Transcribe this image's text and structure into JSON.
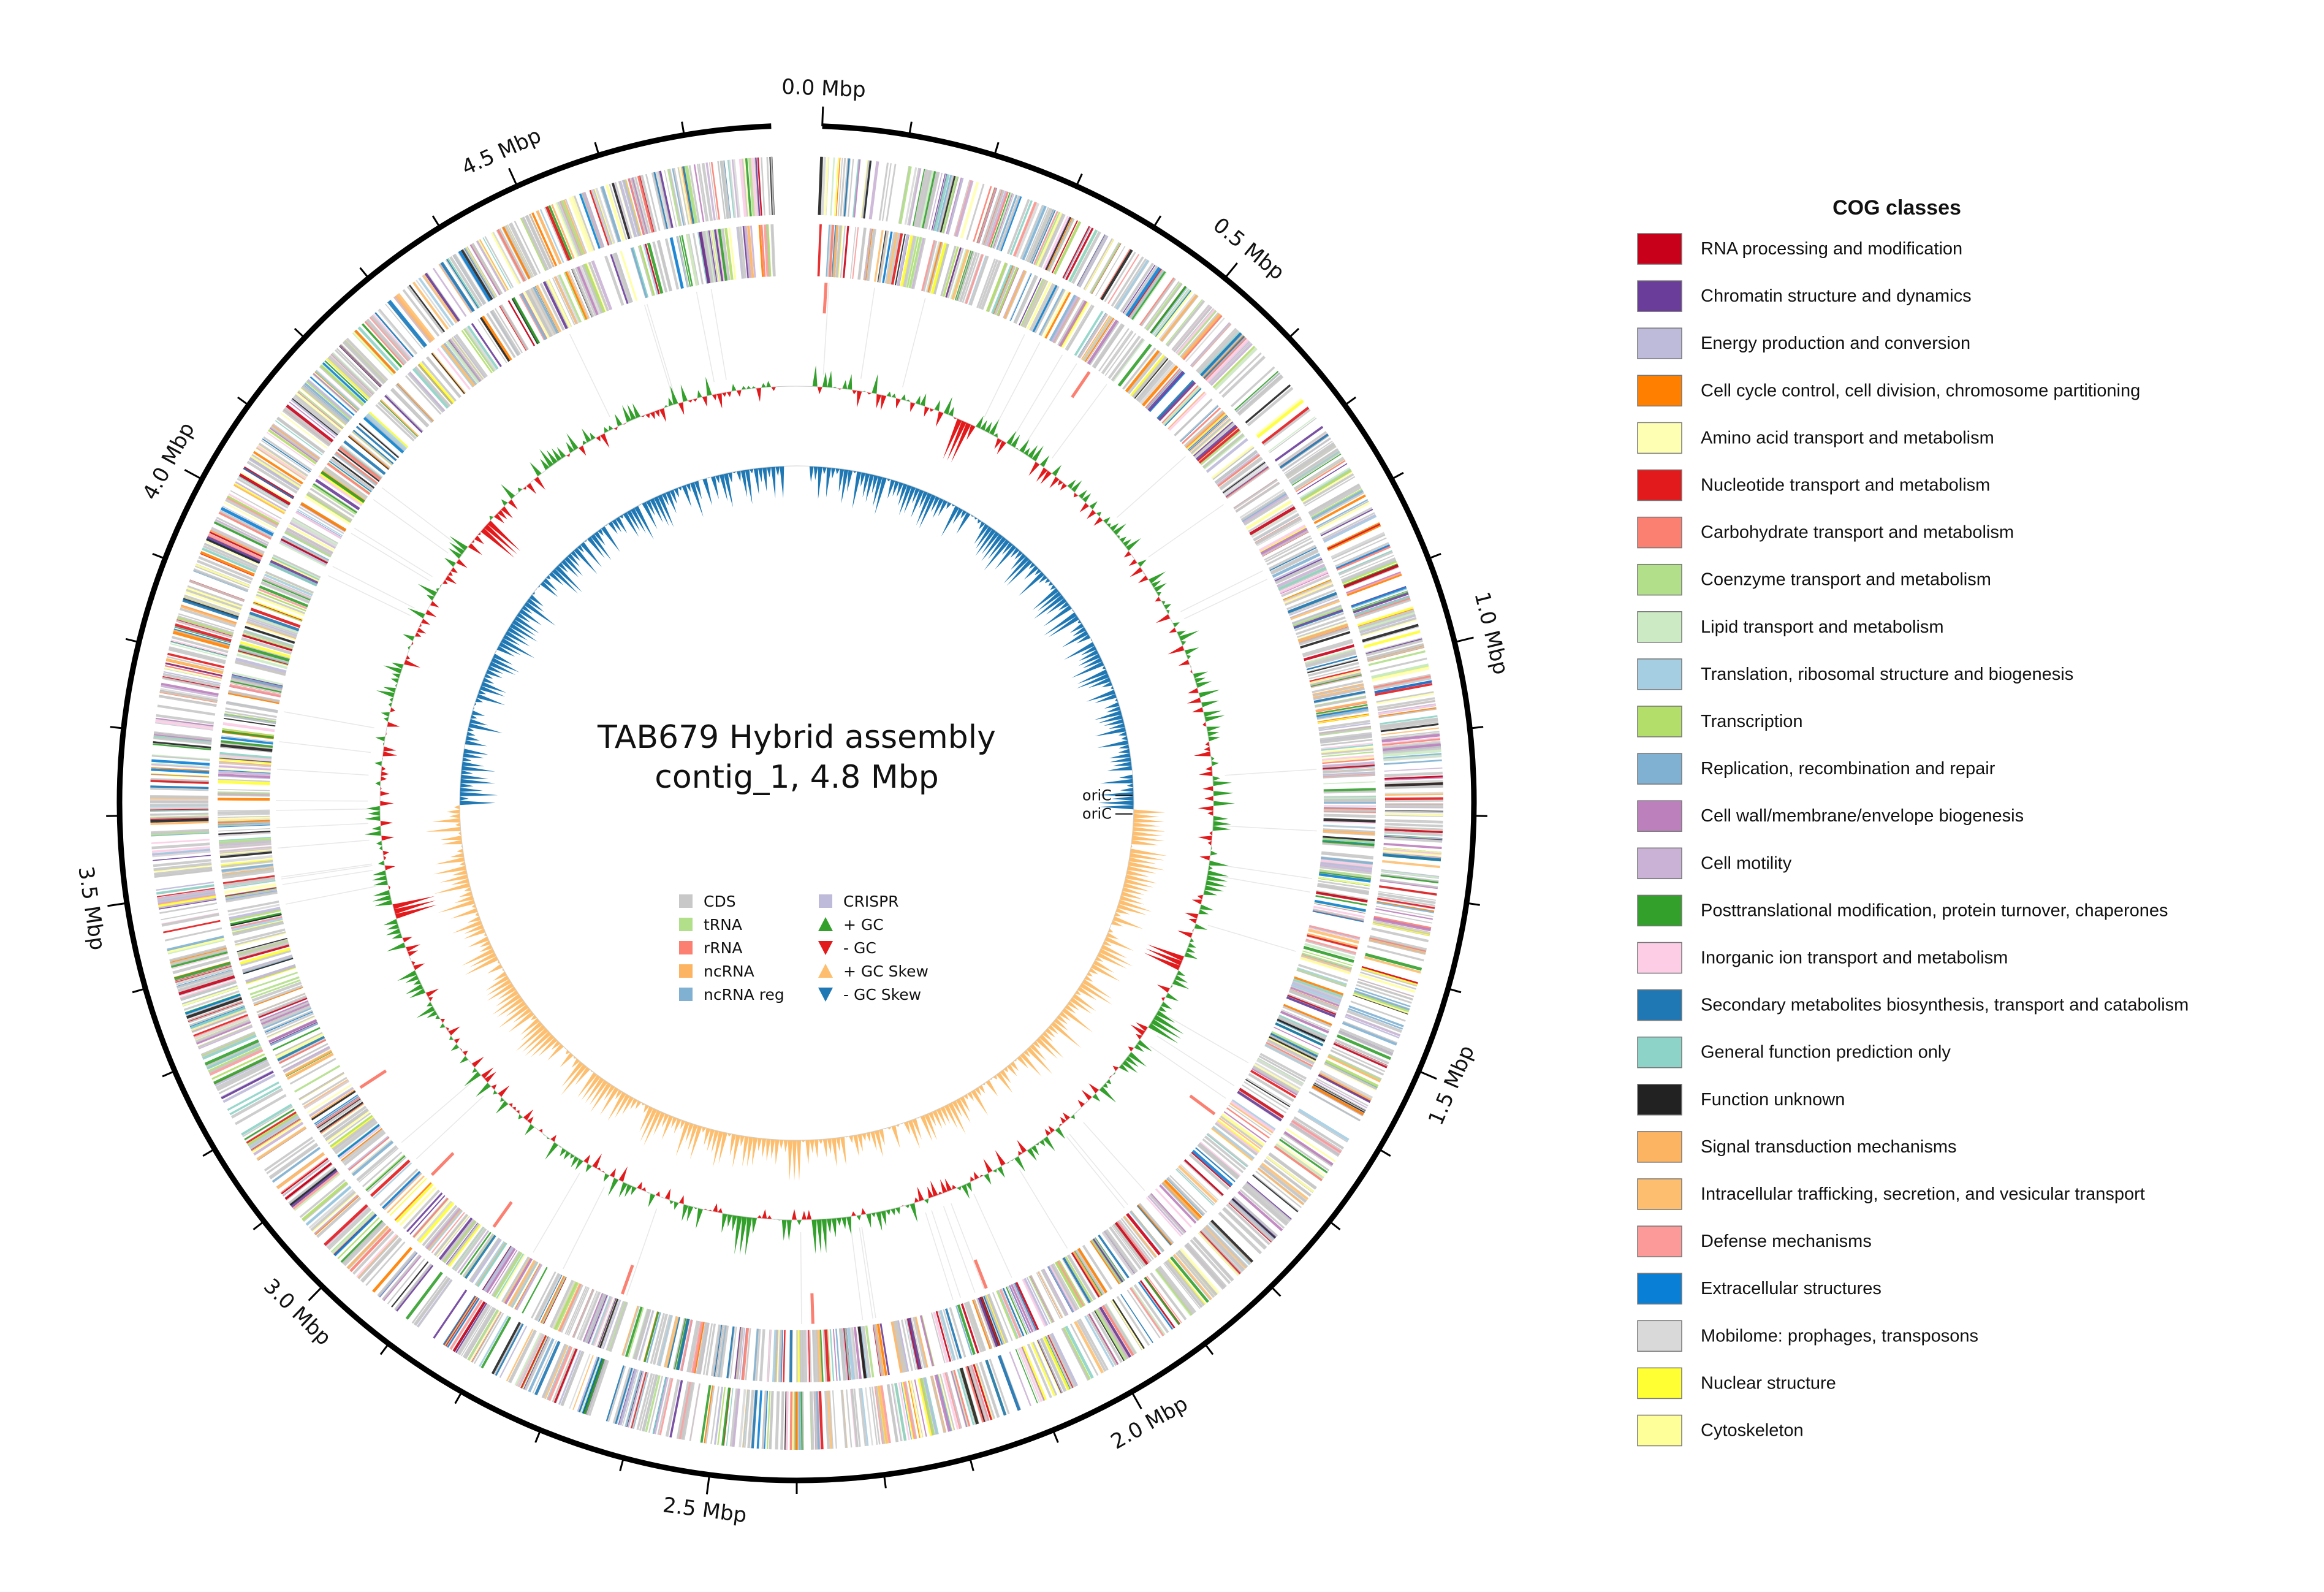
{
  "title_lines": [
    "TAB679 Hybrid assembly",
    "contig_1, 4.8 Mbp"
  ],
  "genome": {
    "length_mbp": 4.8
  },
  "ticks": {
    "labels": [
      "0.0 Mbp",
      "0.5 Mbp",
      "1.0 Mbp",
      "1.5 Mbp",
      "2.0 Mbp",
      "2.5 Mbp",
      "3.0 Mbp",
      "3.5 Mbp",
      "4.0 Mbp",
      "4.5 Mbp"
    ],
    "major_step_mbp": 0.5,
    "minor_step_mbp": 0.1
  },
  "oric": {
    "labels": [
      "oriC",
      "oriC"
    ],
    "position_mbp": 1.2
  },
  "feature_legend": [
    {
      "label": "CDS",
      "color": "#c8c8c8",
      "marker": "square"
    },
    {
      "label": "tRNA",
      "color": "#b2df8a",
      "marker": "square"
    },
    {
      "label": "rRNA",
      "color": "#fb8072",
      "marker": "square"
    },
    {
      "label": "ncRNA",
      "color": "#fdb462",
      "marker": "square"
    },
    {
      "label": "ncRNA reg",
      "color": "#80b1d3",
      "marker": "square"
    },
    {
      "label": "CRISPR",
      "color": "#bebada",
      "marker": "square"
    },
    {
      "label": "+ GC",
      "color": "#33a02c",
      "marker": "triangle-up"
    },
    {
      "label": "- GC",
      "color": "#e31a1c",
      "marker": "triangle-down"
    },
    {
      "label": "+ GC Skew",
      "color": "#fdbf6f",
      "marker": "triangle-up"
    },
    {
      "label": "- GC Skew",
      "color": "#1f78b4",
      "marker": "triangle-down"
    }
  ],
  "cog_legend": {
    "title": "COG classes",
    "items": [
      {
        "label": "RNA processing and modification",
        "color": "#c9001a"
      },
      {
        "label": "Chromatin structure and dynamics",
        "color": "#6a3d9a"
      },
      {
        "label": "Energy production and conversion",
        "color": "#bebada"
      },
      {
        "label": "Cell cycle control, cell division, chromosome partitioning",
        "color": "#ff7f00"
      },
      {
        "label": "Amino acid transport and metabolism",
        "color": "#ffffb3"
      },
      {
        "label": "Nucleotide transport and metabolism",
        "color": "#e31a1c"
      },
      {
        "label": "Carbohydrate transport and metabolism",
        "color": "#fb8072"
      },
      {
        "label": "Coenzyme transport and metabolism",
        "color": "#b2df8a"
      },
      {
        "label": "Lipid transport and metabolism",
        "color": "#ccebc5"
      },
      {
        "label": "Translation, ribosomal structure and biogenesis",
        "color": "#a6cee3"
      },
      {
        "label": "Transcription",
        "color": "#b3de69"
      },
      {
        "label": "Replication, recombination and repair",
        "color": "#80b1d3"
      },
      {
        "label": "Cell wall/membrane/envelope biogenesis",
        "color": "#bc80bd"
      },
      {
        "label": "Cell motility",
        "color": "#cab2d6"
      },
      {
        "label": "Posttranslational modification, protein turnover, chaperones",
        "color": "#33a02c"
      },
      {
        "label": "Inorganic ion transport and metabolism",
        "color": "#fccde5"
      },
      {
        "label": "Secondary metabolites biosynthesis, transport and catabolism",
        "color": "#1f78b4"
      },
      {
        "label": "General function prediction only",
        "color": "#8dd3c7"
      },
      {
        "label": "Function unknown",
        "color": "#222222"
      },
      {
        "label": "Signal transduction mechanisms",
        "color": "#fdb462"
      },
      {
        "label": "Intracellular trafficking, secretion, and vesicular transport",
        "color": "#fdbf6f"
      },
      {
        "label": "Defense mechanisms",
        "color": "#fb9a99"
      },
      {
        "label": "Extracellular structures",
        "color": "#0a7fd6"
      },
      {
        "label": "Mobilome: prophages, transposons",
        "color": "#d9d9d9"
      },
      {
        "label": "Nuclear structure",
        "color": "#ffff33"
      },
      {
        "label": "Cytoskeleton",
        "color": "#ffff99"
      }
    ]
  },
  "colors": {
    "cds_default": "#c8c8c8",
    "rrna": "#fb8072",
    "gc_plus": "#33a02c",
    "gc_minus": "#e31a1c",
    "skew_plus": "#fdbf6f",
    "skew_minus": "#1f78b4",
    "axis": "#000000"
  }
}
